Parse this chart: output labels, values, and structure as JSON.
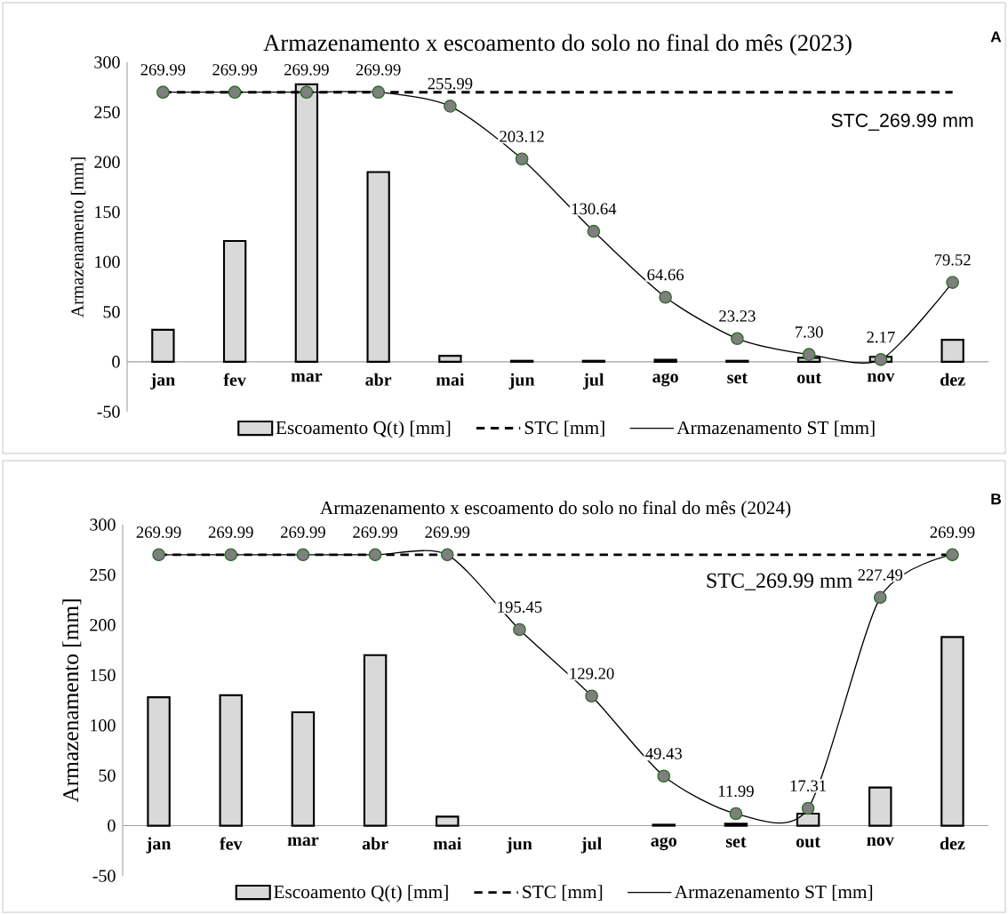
{
  "chart_data": [
    {
      "type": "bar",
      "title": "Armazenamento x escoamento do solo no final do mês (2023)",
      "ylabel": "Armazenamento [mm]",
      "categories": [
        "jan",
        "fev",
        "mar",
        "abr",
        "mai",
        "jun",
        "jul",
        "ago",
        "set",
        "out",
        "nov",
        "dez"
      ],
      "series": [
        {
          "name": "Escoamento Q(t) [mm]",
          "color": "#d9d9d9",
          "values": [
            32,
            121,
            278,
            190,
            6,
            1,
            1,
            2,
            1,
            4,
            5,
            22
          ]
        },
        {
          "name": "STC [mm]",
          "type": "line",
          "color": "#000000",
          "line_style": "dashed",
          "marker": "none",
          "values": [
            269.99,
            269.99,
            269.99,
            269.99,
            269.99,
            269.99,
            269.99,
            269.99,
            269.99,
            269.99,
            269.99,
            269.99
          ]
        },
        {
          "name": "Armazenamento ST [mm]",
          "type": "line",
          "color": "#7f7f7f",
          "line_style": "solid",
          "marker": "circle",
          "values": [
            269.99,
            269.99,
            269.99,
            269.99,
            255.99,
            203.12,
            130.64,
            64.66,
            23.23,
            7.3,
            2.17,
            79.52
          ],
          "value_labels": [
            "269.99",
            "269.99",
            "269.99",
            "269.99",
            "255.99",
            "203.12",
            "130.64",
            "64.66",
            "23.23",
            "7.30",
            "2.17",
            "79.52"
          ]
        }
      ],
      "ylim": [
        -50,
        300
      ],
      "yticks": [
        -50,
        0,
        50,
        100,
        150,
        200,
        250,
        300
      ],
      "grid": false,
      "legend": "bottom",
      "annotations": [
        "A",
        "STC_269.99 mm"
      ]
    },
    {
      "type": "bar",
      "title": "Armazenamento x escoamento do solo no final do mês (2024)",
      "ylabel": "Armazenamento [mm]",
      "categories": [
        "jan",
        "fev",
        "mar",
        "abr",
        "mai",
        "jun",
        "jul",
        "ago",
        "set",
        "out",
        "nov",
        "dez"
      ],
      "series": [
        {
          "name": "Escoamento Q(t) [mm]",
          "color": "#d9d9d9",
          "values": [
            128,
            130,
            113,
            170,
            9,
            null,
            null,
            1,
            2,
            12,
            38,
            188
          ]
        },
        {
          "name": "STC [mm]",
          "type": "line",
          "color": "#000000",
          "line_style": "dashed",
          "marker": "none",
          "values": [
            269.99,
            269.99,
            269.99,
            269.99,
            269.99,
            269.99,
            269.99,
            269.99,
            269.99,
            269.99,
            269.99,
            269.99
          ]
        },
        {
          "name": "Armazenamento ST [mm]",
          "type": "line",
          "color": "#7f7f7f",
          "line_style": "solid",
          "marker": "circle",
          "values": [
            269.99,
            269.99,
            269.99,
            269.99,
            269.99,
            195.45,
            129.2,
            49.43,
            11.99,
            17.31,
            227.49,
            269.99
          ],
          "value_labels": [
            "269.99",
            "269.99",
            "269.99",
            "269.99",
            "269.99",
            "195.45",
            "129.20",
            "49.43",
            "11.99",
            "17.31",
            "227.49",
            "269.99"
          ]
        }
      ],
      "ylim": [
        -50,
        300
      ],
      "yticks": [
        -50,
        0,
        50,
        100,
        150,
        200,
        250,
        300
      ],
      "grid": false,
      "legend": "bottom",
      "annotations": [
        "B",
        "STC_269.99 mm"
      ]
    }
  ]
}
